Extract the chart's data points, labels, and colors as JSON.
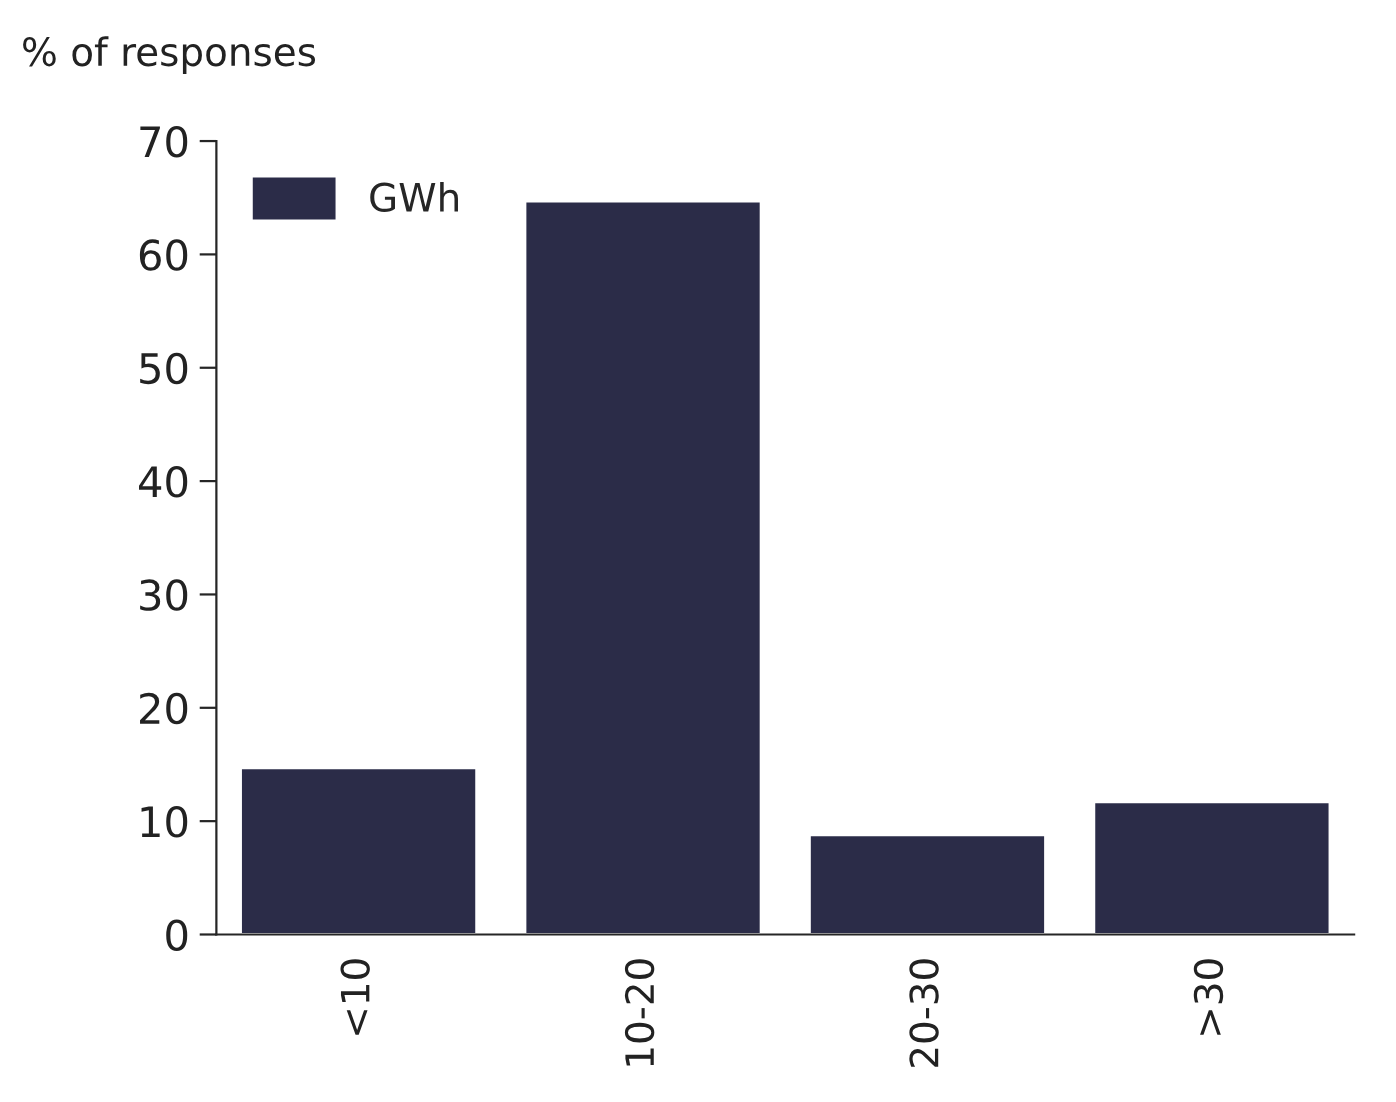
{
  "chart_data": {
    "type": "bar",
    "ylabel": "% of responses",
    "categories": [
      "<10",
      "10-20",
      "20-30",
      ">30"
    ],
    "series": [
      {
        "name": "GWh",
        "color": "#2b2c48",
        "values": [
          14.7,
          64.7,
          8.8,
          11.7
        ]
      }
    ],
    "ylim": [
      0,
      70
    ],
    "yticks": [
      0,
      10,
      20,
      30,
      40,
      50,
      60,
      70
    ],
    "grid": false,
    "legend": "top left"
  }
}
